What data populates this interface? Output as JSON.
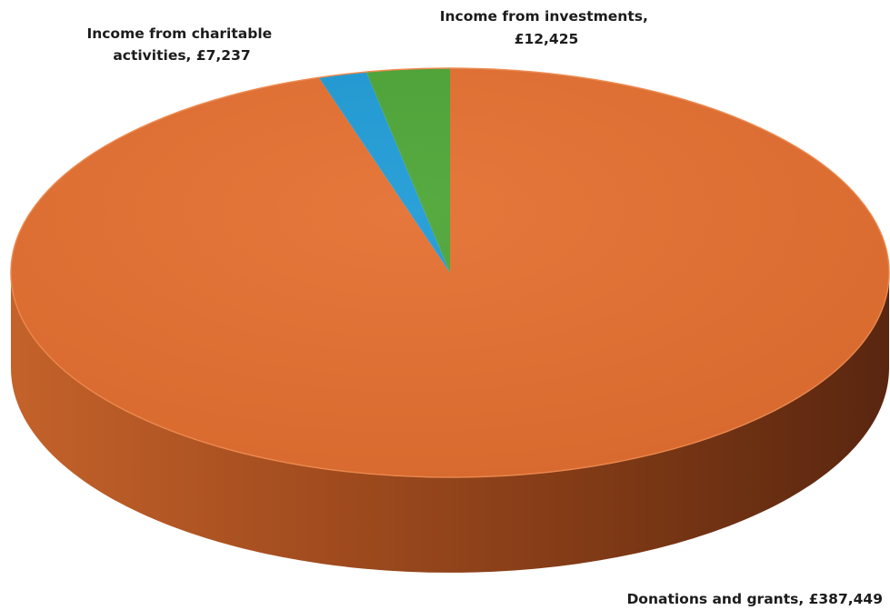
{
  "chart_data": {
    "type": "pie",
    "style": "3d",
    "title": "",
    "slices": [
      {
        "label": "Donations and grants",
        "value": 387449,
        "value_text": "£387,449",
        "color": "#E46F30",
        "side_color": "#B4501E"
      },
      {
        "label": "Income from charitable activities",
        "value": 7237,
        "value_text": "£7,237",
        "color": "#1E9BD6",
        "side_color": "#146C96"
      },
      {
        "label": "Income from investments",
        "value": 12425,
        "value_text": "£12,425",
        "color": "#4CA535",
        "side_color": "#357524"
      }
    ],
    "data_labels": {
      "donations": {
        "line1": "Donations and grants,  £387,449"
      },
      "charitable": {
        "line1": "Income from charitable",
        "line2": "activities,  £7,237"
      },
      "investments": {
        "line1": "Income from investments,",
        "line2": "£12,425"
      }
    },
    "legend": "none"
  }
}
